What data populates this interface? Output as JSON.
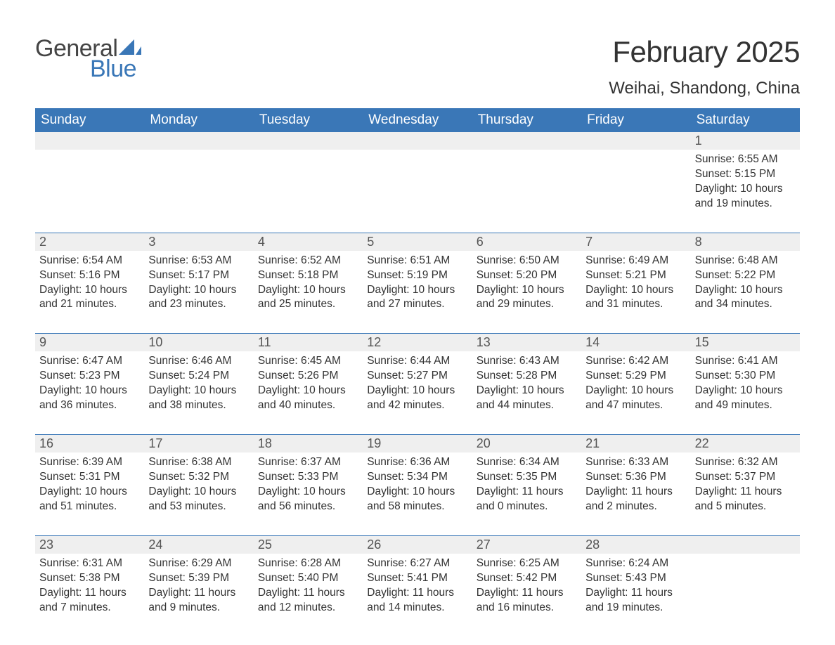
{
  "logo": {
    "text1": "General",
    "text2": "Blue",
    "color_general": "#444444",
    "color_blue": "#3a77b7"
  },
  "title": "February 2025",
  "location": "Weihai, Shandong, China",
  "colors": {
    "header_bg": "#3a77b7",
    "header_text": "#ffffff",
    "daynum_bg": "#efefef",
    "body_text": "#333333",
    "week_divider": "#3a77b7",
    "page_bg": "#ffffff"
  },
  "type": "table",
  "grid": {
    "columns": 7,
    "rows": 5
  },
  "font": {
    "family": "Arial",
    "title_size_pt": 32,
    "location_size_pt": 18,
    "header_size_pt": 14,
    "daynum_size_pt": 14,
    "detail_size_pt": 12
  },
  "day_headers": [
    "Sunday",
    "Monday",
    "Tuesday",
    "Wednesday",
    "Thursday",
    "Friday",
    "Saturday"
  ],
  "weeks": [
    [
      {
        "day": "",
        "sunrise": "",
        "sunset": "",
        "daylight": ""
      },
      {
        "day": "",
        "sunrise": "",
        "sunset": "",
        "daylight": ""
      },
      {
        "day": "",
        "sunrise": "",
        "sunset": "",
        "daylight": ""
      },
      {
        "day": "",
        "sunrise": "",
        "sunset": "",
        "daylight": ""
      },
      {
        "day": "",
        "sunrise": "",
        "sunset": "",
        "daylight": ""
      },
      {
        "day": "",
        "sunrise": "",
        "sunset": "",
        "daylight": ""
      },
      {
        "day": "1",
        "sunrise": "Sunrise: 6:55 AM",
        "sunset": "Sunset: 5:15 PM",
        "daylight": "Daylight: 10 hours and 19 minutes."
      }
    ],
    [
      {
        "day": "2",
        "sunrise": "Sunrise: 6:54 AM",
        "sunset": "Sunset: 5:16 PM",
        "daylight": "Daylight: 10 hours and 21 minutes."
      },
      {
        "day": "3",
        "sunrise": "Sunrise: 6:53 AM",
        "sunset": "Sunset: 5:17 PM",
        "daylight": "Daylight: 10 hours and 23 minutes."
      },
      {
        "day": "4",
        "sunrise": "Sunrise: 6:52 AM",
        "sunset": "Sunset: 5:18 PM",
        "daylight": "Daylight: 10 hours and 25 minutes."
      },
      {
        "day": "5",
        "sunrise": "Sunrise: 6:51 AM",
        "sunset": "Sunset: 5:19 PM",
        "daylight": "Daylight: 10 hours and 27 minutes."
      },
      {
        "day": "6",
        "sunrise": "Sunrise: 6:50 AM",
        "sunset": "Sunset: 5:20 PM",
        "daylight": "Daylight: 10 hours and 29 minutes."
      },
      {
        "day": "7",
        "sunrise": "Sunrise: 6:49 AM",
        "sunset": "Sunset: 5:21 PM",
        "daylight": "Daylight: 10 hours and 31 minutes."
      },
      {
        "day": "8",
        "sunrise": "Sunrise: 6:48 AM",
        "sunset": "Sunset: 5:22 PM",
        "daylight": "Daylight: 10 hours and 34 minutes."
      }
    ],
    [
      {
        "day": "9",
        "sunrise": "Sunrise: 6:47 AM",
        "sunset": "Sunset: 5:23 PM",
        "daylight": "Daylight: 10 hours and 36 minutes."
      },
      {
        "day": "10",
        "sunrise": "Sunrise: 6:46 AM",
        "sunset": "Sunset: 5:24 PM",
        "daylight": "Daylight: 10 hours and 38 minutes."
      },
      {
        "day": "11",
        "sunrise": "Sunrise: 6:45 AM",
        "sunset": "Sunset: 5:26 PM",
        "daylight": "Daylight: 10 hours and 40 minutes."
      },
      {
        "day": "12",
        "sunrise": "Sunrise: 6:44 AM",
        "sunset": "Sunset: 5:27 PM",
        "daylight": "Daylight: 10 hours and 42 minutes."
      },
      {
        "day": "13",
        "sunrise": "Sunrise: 6:43 AM",
        "sunset": "Sunset: 5:28 PM",
        "daylight": "Daylight: 10 hours and 44 minutes."
      },
      {
        "day": "14",
        "sunrise": "Sunrise: 6:42 AM",
        "sunset": "Sunset: 5:29 PM",
        "daylight": "Daylight: 10 hours and 47 minutes."
      },
      {
        "day": "15",
        "sunrise": "Sunrise: 6:41 AM",
        "sunset": "Sunset: 5:30 PM",
        "daylight": "Daylight: 10 hours and 49 minutes."
      }
    ],
    [
      {
        "day": "16",
        "sunrise": "Sunrise: 6:39 AM",
        "sunset": "Sunset: 5:31 PM",
        "daylight": "Daylight: 10 hours and 51 minutes."
      },
      {
        "day": "17",
        "sunrise": "Sunrise: 6:38 AM",
        "sunset": "Sunset: 5:32 PM",
        "daylight": "Daylight: 10 hours and 53 minutes."
      },
      {
        "day": "18",
        "sunrise": "Sunrise: 6:37 AM",
        "sunset": "Sunset: 5:33 PM",
        "daylight": "Daylight: 10 hours and 56 minutes."
      },
      {
        "day": "19",
        "sunrise": "Sunrise: 6:36 AM",
        "sunset": "Sunset: 5:34 PM",
        "daylight": "Daylight: 10 hours and 58 minutes."
      },
      {
        "day": "20",
        "sunrise": "Sunrise: 6:34 AM",
        "sunset": "Sunset: 5:35 PM",
        "daylight": "Daylight: 11 hours and 0 minutes."
      },
      {
        "day": "21",
        "sunrise": "Sunrise: 6:33 AM",
        "sunset": "Sunset: 5:36 PM",
        "daylight": "Daylight: 11 hours and 2 minutes."
      },
      {
        "day": "22",
        "sunrise": "Sunrise: 6:32 AM",
        "sunset": "Sunset: 5:37 PM",
        "daylight": "Daylight: 11 hours and 5 minutes."
      }
    ],
    [
      {
        "day": "23",
        "sunrise": "Sunrise: 6:31 AM",
        "sunset": "Sunset: 5:38 PM",
        "daylight": "Daylight: 11 hours and 7 minutes."
      },
      {
        "day": "24",
        "sunrise": "Sunrise: 6:29 AM",
        "sunset": "Sunset: 5:39 PM",
        "daylight": "Daylight: 11 hours and 9 minutes."
      },
      {
        "day": "25",
        "sunrise": "Sunrise: 6:28 AM",
        "sunset": "Sunset: 5:40 PM",
        "daylight": "Daylight: 11 hours and 12 minutes."
      },
      {
        "day": "26",
        "sunrise": "Sunrise: 6:27 AM",
        "sunset": "Sunset: 5:41 PM",
        "daylight": "Daylight: 11 hours and 14 minutes."
      },
      {
        "day": "27",
        "sunrise": "Sunrise: 6:25 AM",
        "sunset": "Sunset: 5:42 PM",
        "daylight": "Daylight: 11 hours and 16 minutes."
      },
      {
        "day": "28",
        "sunrise": "Sunrise: 6:24 AM",
        "sunset": "Sunset: 5:43 PM",
        "daylight": "Daylight: 11 hours and 19 minutes."
      },
      {
        "day": "",
        "sunrise": "",
        "sunset": "",
        "daylight": ""
      }
    ]
  ]
}
